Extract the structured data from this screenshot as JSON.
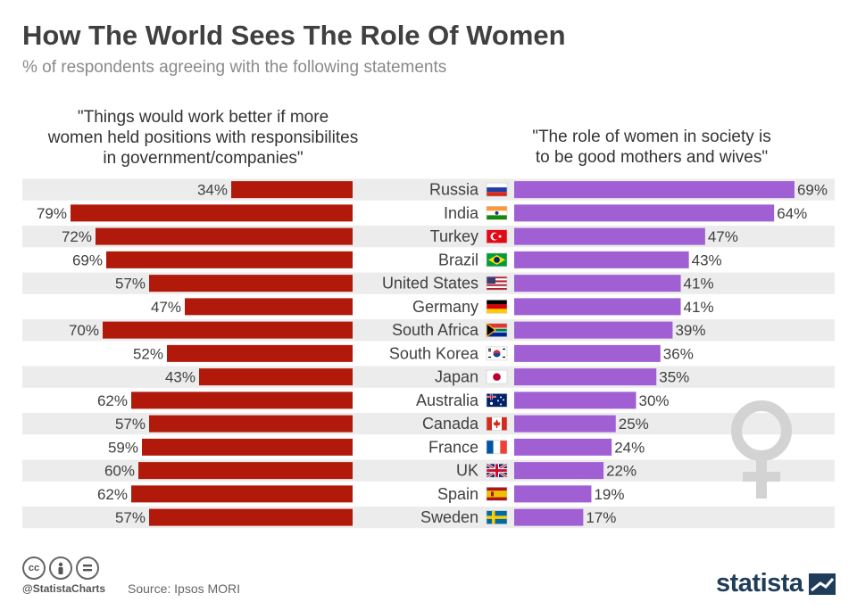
{
  "header": {
    "title": "How The World Sees The Role Of Women",
    "subtitle": "% of respondents agreeing with the following statements"
  },
  "columns": {
    "left_statement": "\"Things would work better if more\nwomen held positions with responsibilites\nin government/companies\"",
    "right_statement": "\"The role of women in society is\nto be good mothers and wives\""
  },
  "footer": {
    "cc_icons": [
      "cc-icon",
      "by-icon",
      "nd-icon"
    ],
    "handle": "@StatistaCharts",
    "source": "Source: Ipsos MORI",
    "brand": "statista"
  },
  "colors": {
    "left_bar": "#b11a0b",
    "right_bar": "#a05fd3",
    "row_stripe": "#ececec",
    "label": "#404040"
  },
  "chart_data": {
    "type": "bar",
    "title": "How The World Sees The Role Of Women",
    "subtitle": "% of respondents agreeing with the following statements",
    "categories": [
      "Russia",
      "India",
      "Turkey",
      "Brazil",
      "United States",
      "Germany",
      "South Africa",
      "South Korea",
      "Japan",
      "Australia",
      "Canada",
      "France",
      "UK",
      "Spain",
      "Sweden"
    ],
    "series": [
      {
        "name": "\"Things would work better if more women held positions with responsibilites in government/companies\"",
        "values": [
          34,
          79,
          72,
          69,
          57,
          47,
          70,
          52,
          43,
          62,
          57,
          59,
          60,
          62,
          57
        ],
        "direction": "left"
      },
      {
        "name": "\"The role of women in society is to be good mothers and wives\"",
        "values": [
          69,
          64,
          47,
          43,
          41,
          41,
          39,
          36,
          35,
          30,
          25,
          24,
          22,
          19,
          17
        ],
        "direction": "right"
      }
    ],
    "unit": "%",
    "xlim": [
      0,
      100
    ]
  }
}
